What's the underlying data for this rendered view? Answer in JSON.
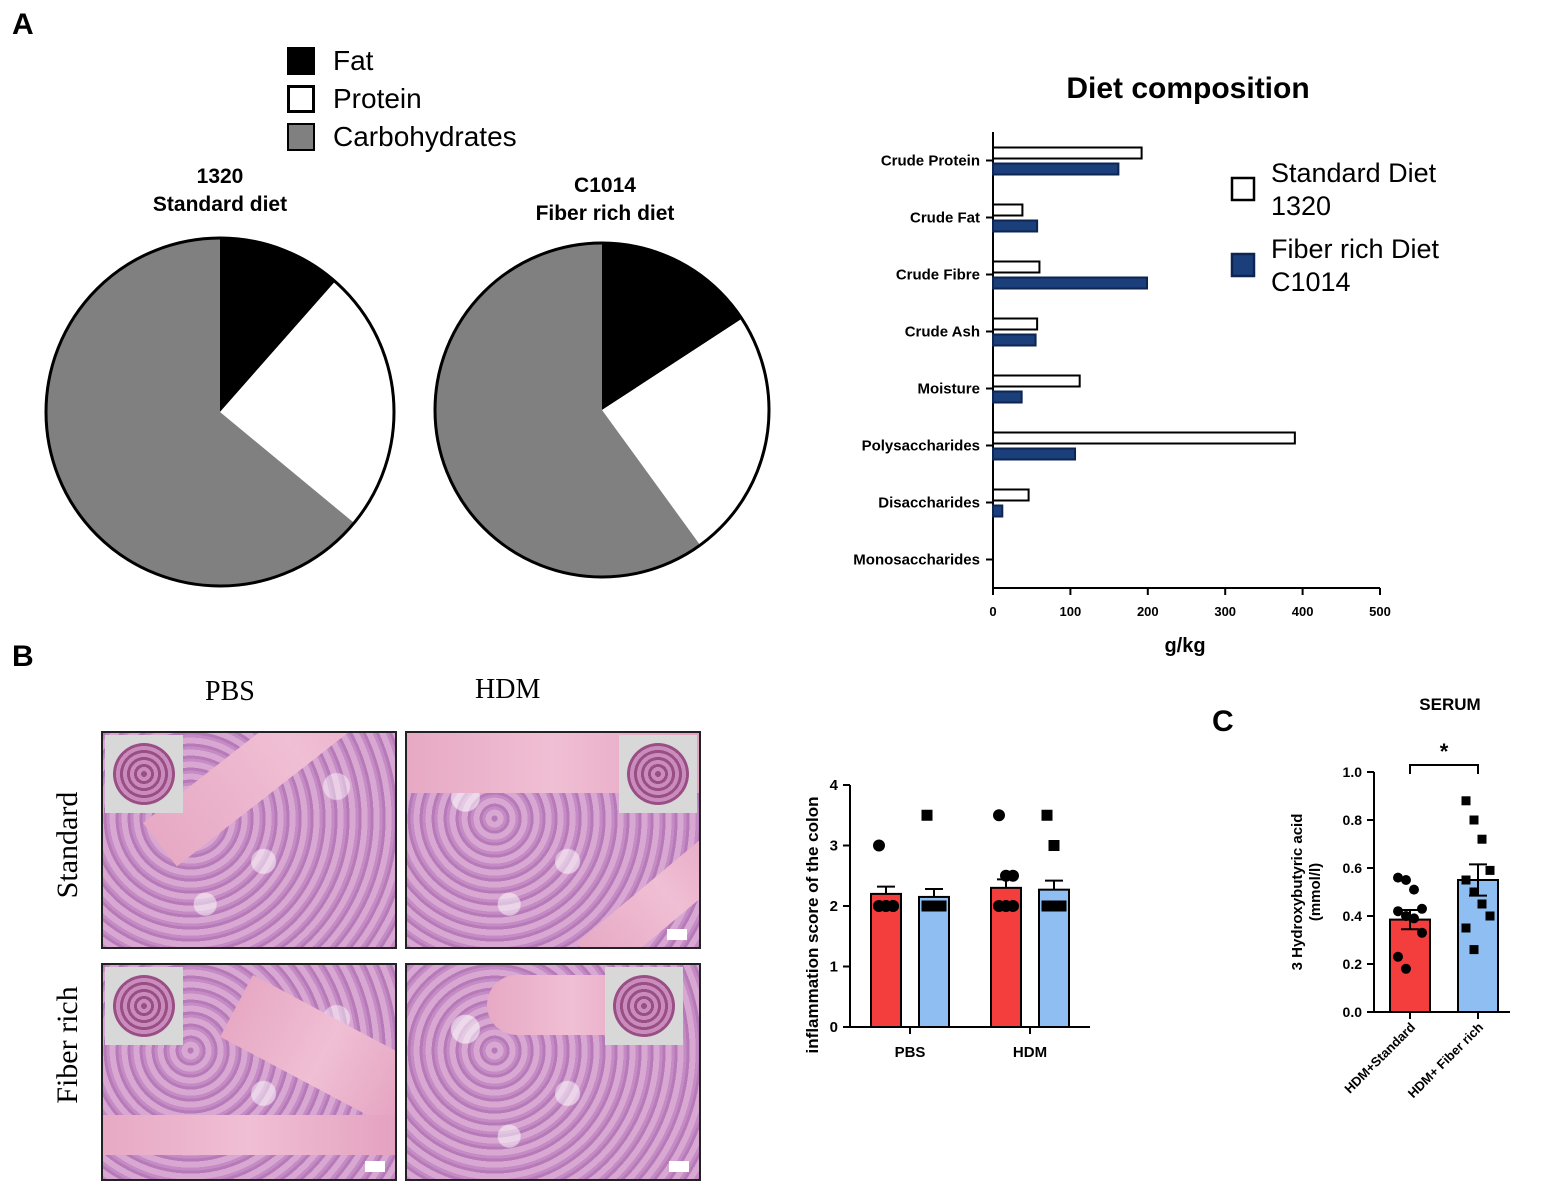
{
  "panels": {
    "a": "A",
    "b": "B",
    "c": "C"
  },
  "pie_legend": {
    "items": [
      {
        "label": "Fat",
        "color": "#000000"
      },
      {
        "label": "Protein",
        "color": "#ffffff"
      },
      {
        "label": "Carbohydrates",
        "color": "#808080"
      }
    ]
  },
  "histology": {
    "col_labels": [
      "PBS",
      "HDM"
    ],
    "row_labels": [
      "Standard",
      "Fiber rich"
    ]
  },
  "chart_data": [
    {
      "type": "pie",
      "title_line1": "1320",
      "title_line2": "Standard diet",
      "slices": [
        {
          "label": "Fat",
          "value": 11.5,
          "color": "#000000"
        },
        {
          "label": "Protein",
          "value": 24.5,
          "color": "#ffffff"
        },
        {
          "label": "Carbohydrates",
          "value": 64,
          "color": "#808080"
        }
      ]
    },
    {
      "type": "pie",
      "title_line1": "C1014",
      "title_line2": "Fiber rich diet",
      "slices": [
        {
          "label": "Fat",
          "value": 15.8,
          "color": "#000000"
        },
        {
          "label": "Protein",
          "value": 24.2,
          "color": "#ffffff"
        },
        {
          "label": "Carbohydrates",
          "value": 60,
          "color": "#808080"
        }
      ]
    },
    {
      "type": "bar",
      "orientation": "horizontal",
      "title": "Diet composition",
      "categories": [
        "Crude Protein",
        "Crude Fat",
        "Crude Fibre",
        "Crude Ash",
        "Moisture",
        "Polysaccharides",
        "Disaccharides",
        "Monosaccharides"
      ],
      "series": [
        {
          "name": "Standard Diet 1320",
          "legend_lines": [
            "Standard Diet",
            "1320"
          ],
          "color": "#ffffff",
          "values": [
            192,
            38,
            60,
            57,
            112,
            390,
            46,
            0
          ]
        },
        {
          "name": "Fiber rich Diet C1014",
          "legend_lines": [
            "Fiber rich Diet",
            "C1014"
          ],
          "color": "#1b3f7a",
          "values": [
            162,
            57,
            199,
            55,
            37,
            106,
            12,
            0
          ]
        }
      ],
      "xlabel": "g/kg",
      "xlim": [
        0,
        500
      ],
      "xticks": [
        0,
        100,
        200,
        300,
        400,
        500
      ]
    },
    {
      "type": "bar",
      "categories": [
        "PBS",
        "HDM"
      ],
      "ylabel": "inflammation score of the colon",
      "ylim": [
        0,
        4
      ],
      "yticks": [
        0,
        1,
        2,
        3,
        4
      ],
      "series": [
        {
          "color": "#f43d3d",
          "marker": "circle",
          "values": [
            2.2,
            2.3
          ],
          "sem": [
            0.12,
            0.14
          ],
          "points": [
            [
              3,
              2,
              2,
              2,
              2,
              2
            ],
            [
              3.5,
              2.5,
              2.5,
              2,
              2,
              2
            ]
          ]
        },
        {
          "color": "#8fbff2",
          "marker": "square",
          "values": [
            2.15,
            2.27
          ],
          "sem": [
            0.13,
            0.15
          ],
          "points": [
            [
              3.5,
              2,
              2,
              2,
              2,
              2
            ],
            [
              3.5,
              3,
              2,
              2,
              2,
              2
            ]
          ]
        }
      ]
    },
    {
      "type": "bar",
      "title": "SERUM",
      "categories": [
        "HDM+Standard",
        "HDM+ Fiber rich"
      ],
      "ylabel_line1": "3 Hydroxybutyric acid",
      "ylabel_line2": "(mmol/l)",
      "ylim": [
        0,
        1.0
      ],
      "yticks": [
        "0.0",
        "0.2",
        "0.4",
        "0.6",
        "0.8",
        "1.0"
      ],
      "significance": "*",
      "series": [
        {
          "color": "#f43d3d",
          "marker": "circle",
          "value": 0.385,
          "sem": 0.04,
          "points": [
            0.56,
            0.55,
            0.51,
            0.43,
            0.42,
            0.4,
            0.39,
            0.33,
            0.23,
            0.18
          ]
        },
        {
          "color": "#8fbff2",
          "marker": "square",
          "value": 0.55,
          "sem": 0.065,
          "points": [
            0.88,
            0.8,
            0.72,
            0.59,
            0.55,
            0.5,
            0.45,
            0.4,
            0.35,
            0.26
          ]
        }
      ]
    }
  ]
}
